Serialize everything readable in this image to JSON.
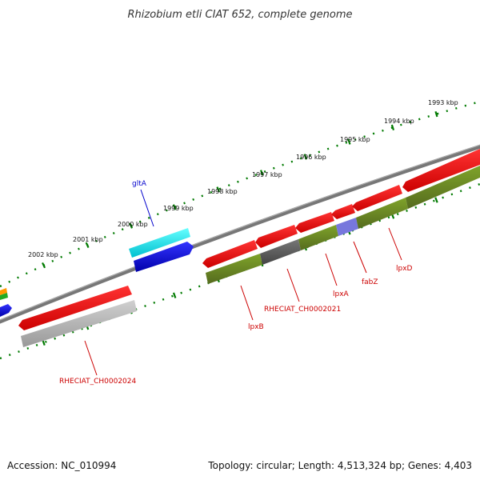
{
  "title": "Rhizobium etli CIAT 652, complete genome",
  "footer": {
    "accession": "Accession: NC_010994",
    "summary": "Topology: circular; Length: 4,513,324 bp; Genes: 4,403"
  },
  "ticks": [
    "1993 kbp",
    "1994 kbp",
    "1995 kbp",
    "1996 kbp",
    "1997 kbp",
    "1998 kbp",
    "1999 kbp",
    "2000 kbp",
    "2001 kbp",
    "2002 kbp"
  ],
  "genes": [
    {
      "label": "gltA",
      "color": "#0000cc"
    },
    {
      "label": "RHECIAT_CH0002024",
      "color": "#cc0000"
    },
    {
      "label": "lpxB",
      "color": "#cc0000"
    },
    {
      "label": "RHECIAT_CH0002021",
      "color": "#cc0000"
    },
    {
      "label": "lpxA",
      "color": "#cc0000"
    },
    {
      "label": "fabZ",
      "color": "#cc0000"
    },
    {
      "label": "lpxD",
      "color": "#cc0000"
    }
  ],
  "colors": {
    "backbone": "#7a7a7a",
    "tick": "#007a00",
    "forward": "#ee0000",
    "reverse": "#6b8e23",
    "cyan": "#00e5ee",
    "blue": "#0000ee",
    "gray": "#aaaaaa",
    "dark": "#555555",
    "purple": "#7777dd"
  }
}
